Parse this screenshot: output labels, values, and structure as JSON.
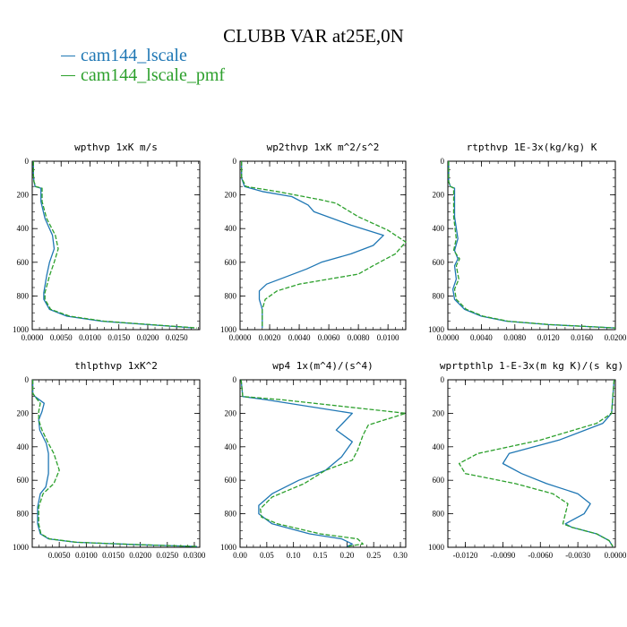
{
  "title": "CLUBB VAR at25E,0N",
  "colors": {
    "series1": "#1f77b4",
    "series2": "#2ca02c"
  },
  "legend": [
    {
      "label": "cam144_lscale",
      "color": "#1f77b4",
      "style": "solid"
    },
    {
      "label": "cam144_lscale_pmf",
      "color": "#2ca02c",
      "style": "dashed"
    }
  ],
  "chart_data": [
    {
      "type": "line",
      "title": "wpthvp  1xK m/s",
      "xlim": [
        0,
        0.029
      ],
      "ylim": [
        1000,
        0
      ],
      "y_reversed": true,
      "xticks": [
        0,
        0.005,
        0.01,
        0.015,
        0.02,
        0.025
      ],
      "xticklabels": [
        "0.0000",
        "0.0050",
        "0.0100",
        "0.0150",
        "0.0200",
        "0.0250"
      ],
      "yticks": [
        0,
        200,
        400,
        600,
        800,
        1000
      ],
      "yticklabels": [
        "0",
        "200",
        "400",
        "600",
        "800",
        "1000"
      ],
      "series": [
        {
          "name": "cam144_lscale",
          "x": [
            0.0002,
            0.0002,
            0.0003,
            0.0005,
            0.0015,
            0.0015,
            0.0022,
            0.0035,
            0.0038,
            0.003,
            0.0025,
            0.002,
            0.002,
            0.003,
            0.006,
            0.012,
            0.02,
            0.028
          ],
          "y": [
            0,
            80,
            120,
            150,
            160,
            240,
            340,
            440,
            520,
            600,
            680,
            780,
            820,
            880,
            920,
            950,
            970,
            990
          ]
        },
        {
          "name": "cam144_lscale_pmf",
          "x": [
            0.0002,
            0.0002,
            0.0003,
            0.0006,
            0.0017,
            0.0017,
            0.0025,
            0.004,
            0.0045,
            0.0038,
            0.003,
            0.0022,
            0.0022,
            0.0032,
            0.0065,
            0.0125,
            0.0205,
            0.0285
          ],
          "y": [
            0,
            80,
            120,
            150,
            160,
            240,
            340,
            440,
            520,
            600,
            680,
            780,
            820,
            880,
            920,
            950,
            970,
            990
          ]
        }
      ]
    },
    {
      "type": "line",
      "title": "wp2thvp  1xK m^2/s^2",
      "xlim": [
        0,
        0.0112
      ],
      "ylim": [
        1000,
        0
      ],
      "y_reversed": true,
      "xticks": [
        0,
        0.002,
        0.004,
        0.006,
        0.008,
        0.01
      ],
      "xticklabels": [
        "0.0000",
        "0.0020",
        "0.0040",
        "0.0060",
        "0.0080",
        "0.0100"
      ],
      "yticks": [
        0,
        200,
        400,
        600,
        800,
        1000
      ],
      "yticklabels": [
        "0",
        "200",
        "400",
        "600",
        "800",
        "1000"
      ],
      "series": [
        {
          "name": "cam144_lscale",
          "x": [
            0.0001,
            0.0001,
            0.0003,
            0.0015,
            0.0035,
            0.0046,
            0.005,
            0.0075,
            0.0097,
            0.009,
            0.0075,
            0.0055,
            0.0045,
            0.003,
            0.0018,
            0.0013,
            0.0013,
            0.0015,
            0.0015,
            0.0015
          ],
          "y": [
            0,
            100,
            150,
            180,
            210,
            260,
            300,
            380,
            440,
            500,
            550,
            600,
            640,
            690,
            730,
            770,
            820,
            880,
            950,
            990
          ]
        },
        {
          "name": "cam144_lscale_pmf",
          "x": [
            0.0001,
            0.0001,
            0.0004,
            0.0025,
            0.0055,
            0.0065,
            0.008,
            0.01,
            0.0112,
            0.0105,
            0.009,
            0.008,
            0.006,
            0.004,
            0.0025,
            0.0017,
            0.0015,
            0.0015,
            0.0015
          ],
          "y": [
            0,
            100,
            150,
            180,
            230,
            250,
            330,
            410,
            480,
            550,
            620,
            670,
            700,
            730,
            770,
            820,
            880,
            950,
            990
          ]
        }
      ]
    },
    {
      "type": "line",
      "title": "rtpthvp  1E-3x(kg/kg) K",
      "xlim": [
        0,
        0.02
      ],
      "ylim": [
        1000,
        0
      ],
      "y_reversed": true,
      "xticks": [
        0,
        0.004,
        0.008,
        0.012,
        0.016,
        0.02
      ],
      "xticklabels": [
        "0.0000",
        "0.0040",
        "0.0080",
        "0.0120",
        "0.0160",
        "0.0200"
      ],
      "yticks": [
        0,
        200,
        400,
        600,
        800,
        1000
      ],
      "yticklabels": [
        "0",
        "200",
        "400",
        "600",
        "800",
        "1000"
      ],
      "series": [
        {
          "name": "cam144_lscale",
          "x": [
            0.0001,
            0.0001,
            0.0003,
            0.0008,
            0.0008,
            0.0012,
            0.0008,
            0.0012,
            0.0008,
            0.001,
            0.0006,
            0.0008,
            0.002,
            0.004,
            0.007,
            0.012,
            0.02
          ],
          "y": [
            0,
            120,
            150,
            160,
            330,
            460,
            530,
            580,
            620,
            700,
            760,
            820,
            880,
            920,
            950,
            970,
            990
          ]
        },
        {
          "name": "cam144_lscale_pmf",
          "x": [
            0.0001,
            0.0001,
            0.0003,
            0.0007,
            0.0007,
            0.001,
            0.0007,
            0.0014,
            0.001,
            0.0013,
            0.0008,
            0.001,
            0.0022,
            0.0042,
            0.0072,
            0.0122,
            0.02
          ],
          "y": [
            0,
            120,
            150,
            160,
            330,
            460,
            530,
            580,
            620,
            700,
            760,
            820,
            880,
            920,
            950,
            970,
            990
          ]
        }
      ]
    },
    {
      "type": "line",
      "title": "thlpthvp  1xK^2",
      "xlim": [
        0,
        0.031
      ],
      "ylim": [
        1000,
        0
      ],
      "y_reversed": true,
      "xticks": [
        0.005,
        0.01,
        0.015,
        0.02,
        0.025,
        0.03
      ],
      "xticklabels": [
        "0.0050",
        "0.0100",
        "0.0150",
        "0.0200",
        "0.0250",
        "0.0300"
      ],
      "yticks": [
        0,
        200,
        400,
        600,
        800,
        1000
      ],
      "yticklabels": [
        "0",
        "200",
        "400",
        "600",
        "800",
        "1000"
      ],
      "series": [
        {
          "name": "cam144_lscale",
          "x": [
            0.0001,
            0.0001,
            0.0005,
            0.0022,
            0.0018,
            0.0012,
            0.0014,
            0.0026,
            0.003,
            0.003,
            0.0025,
            0.0015,
            0.001,
            0.001,
            0.0015,
            0.003,
            0.008,
            0.02,
            0.0305
          ],
          "y": [
            0,
            80,
            100,
            140,
            190,
            240,
            300,
            380,
            440,
            560,
            640,
            680,
            760,
            860,
            920,
            950,
            970,
            985,
            995
          ]
        },
        {
          "name": "cam144_lscale_pmf",
          "x": [
            0.0001,
            0.0001,
            0.0005,
            0.0015,
            0.0012,
            0.0012,
            0.0018,
            0.003,
            0.004,
            0.005,
            0.004,
            0.002,
            0.0012,
            0.0012,
            0.0016,
            0.0032,
            0.0082,
            0.0202,
            0.0305
          ],
          "y": [
            0,
            80,
            100,
            140,
            190,
            240,
            300,
            380,
            440,
            540,
            620,
            680,
            760,
            860,
            920,
            950,
            970,
            985,
            995
          ]
        }
      ]
    },
    {
      "type": "line",
      "title": "wp4  1x(m^4)/(s^4)",
      "xlim": [
        0,
        0.31
      ],
      "ylim": [
        1000,
        0
      ],
      "y_reversed": true,
      "xticks": [
        0,
        0.05,
        0.1,
        0.15,
        0.2,
        0.25,
        0.3
      ],
      "xticklabels": [
        "0.00",
        "0.05",
        "0.10",
        "0.15",
        "0.20",
        "0.25",
        "0.30"
      ],
      "yticks": [
        0,
        200,
        400,
        600,
        800,
        1000
      ],
      "yticklabels": [
        "0",
        "200",
        "400",
        "600",
        "800",
        "1000"
      ],
      "series": [
        {
          "name": "cam144_lscale",
          "x": [
            0.002,
            0.005,
            0.05,
            0.21,
            0.18,
            0.21,
            0.19,
            0.16,
            0.11,
            0.06,
            0.035,
            0.035,
            0.06,
            0.13,
            0.19,
            0.21,
            0.2
          ],
          "y": [
            0,
            100,
            120,
            200,
            300,
            370,
            460,
            540,
            600,
            680,
            750,
            800,
            860,
            920,
            950,
            980,
            995
          ]
        },
        {
          "name": "cam144_lscale_pmf",
          "x": [
            0.002,
            0.005,
            0.08,
            0.31,
            0.24,
            0.23,
            0.22,
            0.21,
            0.16,
            0.12,
            0.06,
            0.038,
            0.04,
            0.07,
            0.15,
            0.22,
            0.23,
            0.2
          ],
          "y": [
            0,
            100,
            120,
            200,
            270,
            330,
            420,
            480,
            540,
            620,
            700,
            770,
            820,
            860,
            920,
            950,
            980,
            995
          ]
        }
      ]
    },
    {
      "type": "line",
      "title": "wprtpthlp  1-E-3x(m kg K)/(s kg)",
      "xlim": [
        -0.0134,
        0
      ],
      "ylim": [
        1000,
        0
      ],
      "y_reversed": true,
      "xticks": [
        -0.012,
        -0.009,
        -0.006,
        -0.003,
        0
      ],
      "xticklabels": [
        "-0.0120",
        "-0.0090",
        "-0.0060",
        "-0.0030",
        "0.0000"
      ],
      "yticks": [
        0,
        200,
        400,
        600,
        800,
        1000
      ],
      "yticklabels": [
        "0",
        "200",
        "400",
        "600",
        "800",
        "1000"
      ],
      "series": [
        {
          "name": "cam144_lscale",
          "x": [
            -0.0001,
            -0.0002,
            -0.0003,
            -0.001,
            -0.0045,
            -0.0085,
            -0.009,
            -0.0075,
            -0.0055,
            -0.003,
            -0.002,
            -0.0025,
            -0.004,
            -0.0035,
            -0.0015,
            -0.0005,
            -0.0002
          ],
          "y": [
            0,
            100,
            200,
            260,
            360,
            440,
            500,
            560,
            620,
            680,
            740,
            800,
            860,
            880,
            920,
            960,
            995
          ]
        },
        {
          "name": "cam144_lscale_pmf",
          "x": [
            -0.0001,
            -0.0002,
            -0.0003,
            -0.0015,
            -0.006,
            -0.011,
            -0.0125,
            -0.012,
            -0.008,
            -0.005,
            -0.0038,
            -0.004,
            -0.0042,
            -0.0035,
            -0.0015,
            -0.0005,
            -0.0002
          ],
          "y": [
            0,
            100,
            200,
            260,
            360,
            440,
            500,
            560,
            620,
            680,
            740,
            800,
            860,
            880,
            920,
            960,
            995
          ]
        }
      ]
    }
  ]
}
